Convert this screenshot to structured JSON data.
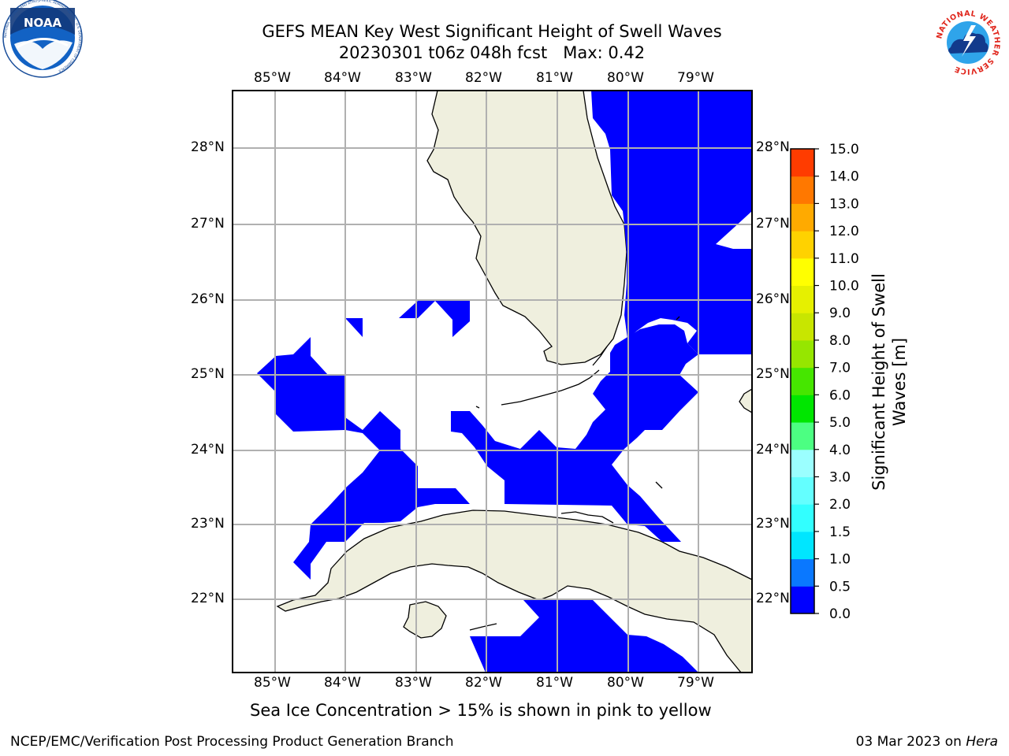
{
  "header": {
    "title_line1": "GEFS MEAN Key West Significant Height of Swell Waves",
    "title_line2": "20230301 t06z 048h fcst   Max: 0.42"
  },
  "logos": {
    "left": {
      "text": "NOAA",
      "ring_text": "NATIONAL OCEANIC AND ATMOSPHERIC ADMINISTRATION · U.S. DEPARTMENT OF COMMERCE"
    },
    "right": {
      "ring_text": "NATIONAL WEATHER SERVICE"
    }
  },
  "map": {
    "lon_ticks": [
      "85°W",
      "84°W",
      "83°W",
      "82°W",
      "81°W",
      "80°W",
      "79°W"
    ],
    "lat_ticks": [
      "28°N",
      "27°N",
      "26°N",
      "25°N",
      "24°N",
      "23°N",
      "22°N"
    ],
    "colors": {
      "land": "#efefde",
      "swell": "#0000ff",
      "grid": "#b0b0b0",
      "coast": "#000000"
    }
  },
  "colorbar": {
    "label": "Significant Height of Swell Waves [m]",
    "ticks": [
      "0.0",
      "0.5",
      "1.0",
      "1.5",
      "2.0",
      "3.0",
      "4.0",
      "5.0",
      "6.0",
      "7.0",
      "8.0",
      "9.0",
      "10.0",
      "11.0",
      "12.0",
      "13.0",
      "14.0",
      "15.0"
    ],
    "colors": [
      "#0000ff",
      "#0a78ff",
      "#00e6ff",
      "#32ffff",
      "#64ffff",
      "#9bffff",
      "#4cff82",
      "#00e600",
      "#46e600",
      "#96e600",
      "#c8e600",
      "#e6f000",
      "#ffff00",
      "#ffd200",
      "#ffaa00",
      "#ff7800",
      "#ff3c00",
      "#ff0000"
    ]
  },
  "caption": "Sea Ice Concentration > 15% is shown in pink to yellow",
  "footer": {
    "left": "NCEP/EMC/Verification Post Processing Product Generation Branch",
    "right_date": "03 Mar 2023 on ",
    "right_machine": "Hera"
  }
}
